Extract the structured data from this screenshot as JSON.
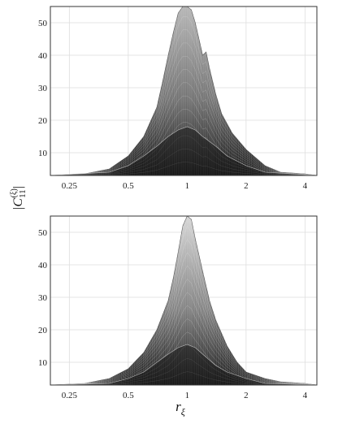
{
  "ylabel": "|C",
  "ylabel_sub": "11",
  "ylabel_sup": "(ξ)",
  "ylabel_end": "|",
  "xlabel": "r",
  "xlabel_sub": "ξ",
  "chart_data": [
    {
      "type": "area",
      "title": "",
      "x_scale": "log2",
      "xlim": [
        0.2,
        4.6
      ],
      "ylim": [
        3,
        55
      ],
      "x_ticks": [
        0.25,
        0.5,
        1,
        2,
        4
      ],
      "x_tick_labels": [
        "0.25",
        "0.5",
        "1",
        "2",
        "4"
      ],
      "y_ticks": [
        10,
        20,
        30,
        40,
        50
      ],
      "y_tick_labels": [
        "10",
        "20",
        "30",
        "40",
        "50"
      ],
      "grid": true,
      "series": [
        {
          "role": "upper envelope",
          "x": [
            0.2,
            0.3,
            0.4,
            0.5,
            0.6,
            0.7,
            0.75,
            0.8,
            0.85,
            0.9,
            0.95,
            1.0,
            1.05,
            1.1,
            1.2,
            1.25,
            1.3,
            1.4,
            1.5,
            1.7,
            2.0,
            2.5,
            3.0,
            4.0,
            4.6
          ],
          "y": [
            3,
            3.5,
            5,
            9,
            15,
            24,
            32,
            40,
            47,
            53,
            56,
            56,
            54,
            50,
            40,
            41,
            36,
            28,
            22,
            16,
            11,
            6,
            4,
            3.5,
            3
          ]
        },
        {
          "role": "inner level",
          "x": [
            0.2,
            0.4,
            0.5,
            0.6,
            0.7,
            0.8,
            0.9,
            1.0,
            1.1,
            1.2,
            1.4,
            1.6,
            2.0,
            2.5,
            4.6
          ],
          "y": [
            3,
            4,
            6,
            9,
            12,
            15,
            17,
            18,
            17,
            15,
            12,
            9,
            6,
            4,
            3
          ]
        }
      ]
    },
    {
      "type": "area",
      "title": "",
      "x_scale": "log2",
      "xlim": [
        0.2,
        4.6
      ],
      "ylim": [
        3,
        55
      ],
      "x_ticks": [
        0.25,
        0.5,
        1,
        2,
        4
      ],
      "x_tick_labels": [
        "0.25",
        "0.5",
        "1",
        "2",
        "4"
      ],
      "y_ticks": [
        10,
        20,
        30,
        40,
        50
      ],
      "y_tick_labels": [
        "10",
        "20",
        "30",
        "40",
        "50"
      ],
      "grid": true,
      "series": [
        {
          "role": "upper envelope",
          "x": [
            0.2,
            0.3,
            0.4,
            0.5,
            0.6,
            0.7,
            0.8,
            0.85,
            0.9,
            0.95,
            1.0,
            1.05,
            1.1,
            1.2,
            1.3,
            1.4,
            1.6,
            1.8,
            2.0,
            2.5,
            3.0,
            4.0,
            4.6
          ],
          "y": [
            3,
            3.5,
            5,
            8,
            13,
            20,
            29,
            36,
            44,
            52,
            56,
            54,
            48,
            38,
            29,
            23,
            15,
            10,
            7,
            5,
            4,
            3.5,
            3
          ]
        },
        {
          "role": "inner level",
          "x": [
            0.2,
            0.4,
            0.5,
            0.6,
            0.7,
            0.8,
            0.9,
            1.0,
            1.1,
            1.2,
            1.4,
            1.6,
            2.0,
            2.5,
            4.6
          ],
          "y": [
            3,
            3.5,
            5,
            7,
            10,
            12.5,
            14.5,
            15.5,
            14.5,
            12.5,
            9,
            7,
            5,
            3.5,
            3
          ]
        }
      ]
    }
  ]
}
